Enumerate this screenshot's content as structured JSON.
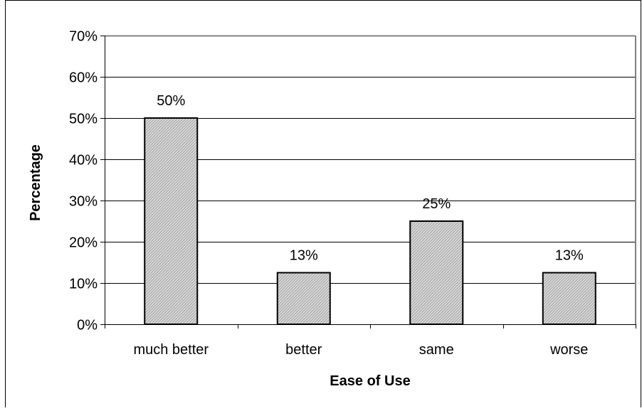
{
  "chart_data": {
    "type": "bar",
    "categories": [
      "much better",
      "better",
      "same",
      "worse"
    ],
    "values": [
      50,
      12.5,
      25,
      12.5
    ],
    "data_labels": [
      "50%",
      "13%",
      "25%",
      "13%"
    ],
    "title": "",
    "xlabel": "Ease of Use",
    "ylabel": "Percentage",
    "ylim": [
      0,
      70
    ],
    "yticks": [
      0,
      10,
      20,
      30,
      40,
      50,
      60,
      70
    ],
    "ytick_labels": [
      "0%",
      "10%",
      "20%",
      "30%",
      "40%",
      "50%",
      "60%",
      "70%"
    ],
    "grid": true,
    "legend": "none",
    "bar_fill": "#d4d4d4",
    "bar_stroke": "#000000",
    "gridline_color": "#000000",
    "plot_border_color": "#808080"
  }
}
